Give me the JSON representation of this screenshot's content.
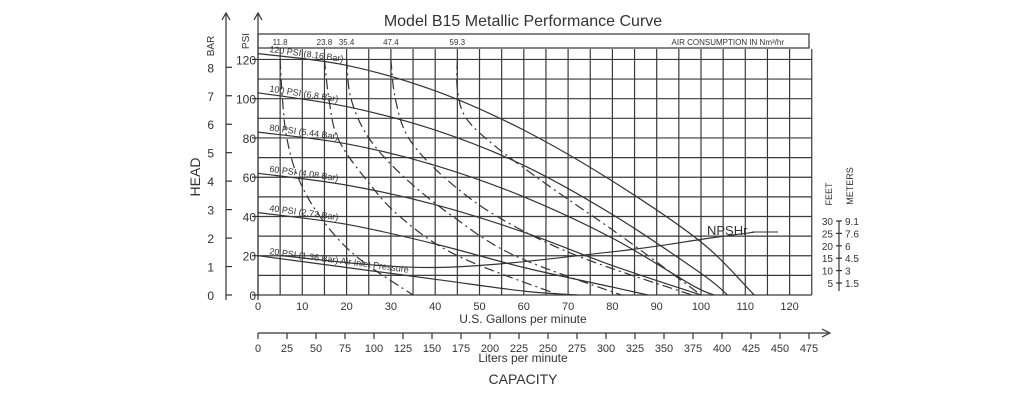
{
  "chart_data": {
    "type": "line",
    "title": "Model B15 Metallic Performance Curve",
    "x_gpm": {
      "label": "U.S. Gallons per minute",
      "range": [
        0,
        125
      ],
      "ticks": [
        "0",
        "10",
        "20",
        "30",
        "40",
        "50",
        "60",
        "70",
        "80",
        "90",
        "100",
        "110",
        "120"
      ]
    },
    "x_lpm": {
      "label": "Liters per minute",
      "ticks": [
        "0",
        "25",
        "50",
        "75",
        "100",
        "125",
        "150",
        "175",
        "200",
        "225",
        "250",
        "275",
        "300",
        "325",
        "350",
        "375",
        "400",
        "425",
        "450",
        "475"
      ]
    },
    "capacity_label": "CAPACITY",
    "head_label": "HEAD",
    "y_psi": {
      "label": "PSI",
      "range": [
        0,
        120
      ],
      "ticks": [
        "0",
        "20",
        "40",
        "60",
        "80",
        "100",
        "120"
      ]
    },
    "y_bar": {
      "label": "BAR",
      "ticks": [
        "0",
        "1",
        "2",
        "3",
        "4",
        "5",
        "6",
        "7",
        "8"
      ]
    },
    "feet_meters": {
      "feet_label": "FEET",
      "meters_label": "METERS",
      "rows": [
        {
          "feet": "30",
          "meters": "9.1"
        },
        {
          "feet": "25",
          "meters": "7.6"
        },
        {
          "feet": "20",
          "meters": "6"
        },
        {
          "feet": "15",
          "meters": "4.5"
        },
        {
          "feet": "10",
          "meters": "3"
        },
        {
          "feet": "5",
          "meters": "1.5"
        }
      ]
    },
    "air_consumption": {
      "label": "AIR CONSUMPTION IN Nm³/hr",
      "values": [
        "11.8",
        "23.8",
        "35.4",
        "47.4",
        "59.3"
      ],
      "curves": [
        {
          "top_gpm": 5,
          "points": [
            [
              5,
              120
            ],
            [
              5.5,
              100
            ],
            [
              6.5,
              80
            ],
            [
              9,
              60
            ],
            [
              14,
              40
            ],
            [
              22,
              20
            ],
            [
              35,
              0
            ]
          ]
        },
        {
          "top_gpm": 15,
          "points": [
            [
              15,
              120
            ],
            [
              16,
              100
            ],
            [
              18,
              80
            ],
            [
              24,
              60
            ],
            [
              32,
              40
            ],
            [
              45,
              20
            ],
            [
              68,
              0
            ]
          ]
        },
        {
          "top_gpm": 20,
          "points": [
            [
              20,
              120
            ],
            [
              21,
              100
            ],
            [
              25,
              80
            ],
            [
              33,
              60
            ],
            [
              44,
              40
            ],
            [
              58,
              20
            ],
            [
              82,
              0
            ]
          ]
        },
        {
          "top_gpm": 30,
          "points": [
            [
              30,
              120
            ],
            [
              31,
              100
            ],
            [
              34,
              80
            ],
            [
              42,
              60
            ],
            [
              54,
              40
            ],
            [
              72,
              20
            ],
            [
              98,
              0
            ]
          ]
        },
        {
          "top_gpm": 45,
          "points": [
            [
              45,
              120
            ],
            [
              45,
              105
            ],
            [
              47,
              90
            ],
            [
              54,
              75
            ],
            [
              66,
              55
            ],
            [
              82,
              30
            ],
            [
              100,
              0
            ]
          ]
        }
      ]
    },
    "npshr_label": "NPSHr",
    "npshr_curve": [
      [
        5,
        20
      ],
      [
        40,
        14
      ],
      [
        80,
        22
      ],
      [
        102,
        29
      ],
      [
        112,
        32
      ]
    ],
    "series": [
      {
        "name": "120 PSI (8.16 Bar)",
        "points": [
          [
            0,
            123
          ],
          [
            20,
            117
          ],
          [
            40,
            104
          ],
          [
            60,
            84
          ],
          [
            80,
            58
          ],
          [
            100,
            27
          ],
          [
            112,
            0
          ]
        ]
      },
      {
        "name": "100 PSI (6.8 Bar)",
        "points": [
          [
            0,
            103
          ],
          [
            20,
            96
          ],
          [
            40,
            84
          ],
          [
            60,
            66
          ],
          [
            80,
            41
          ],
          [
            100,
            11
          ],
          [
            106,
            0
          ]
        ]
      },
      {
        "name": "80 PSI (5.44 Bar)",
        "points": [
          [
            0,
            83
          ],
          [
            20,
            77
          ],
          [
            40,
            66
          ],
          [
            60,
            50
          ],
          [
            80,
            29
          ],
          [
            98,
            5
          ],
          [
            103,
            0
          ]
        ]
      },
      {
        "name": "60 PSI (4.08 Bar)",
        "points": [
          [
            0,
            62
          ],
          [
            20,
            56
          ],
          [
            40,
            46
          ],
          [
            60,
            32
          ],
          [
            80,
            15
          ],
          [
            100,
            0
          ]
        ]
      },
      {
        "name": "40 PSI (2.72 Bar)",
        "points": [
          [
            0,
            42
          ],
          [
            20,
            36
          ],
          [
            40,
            26
          ],
          [
            60,
            14
          ],
          [
            80,
            4
          ],
          [
            88,
            0
          ]
        ]
      },
      {
        "name": "20 PSI (1.36 Bar) Air Inlet Pressure",
        "points": [
          [
            0,
            20
          ],
          [
            20,
            14
          ],
          [
            40,
            8
          ],
          [
            60,
            2
          ],
          [
            72,
            0
          ]
        ]
      }
    ]
  }
}
